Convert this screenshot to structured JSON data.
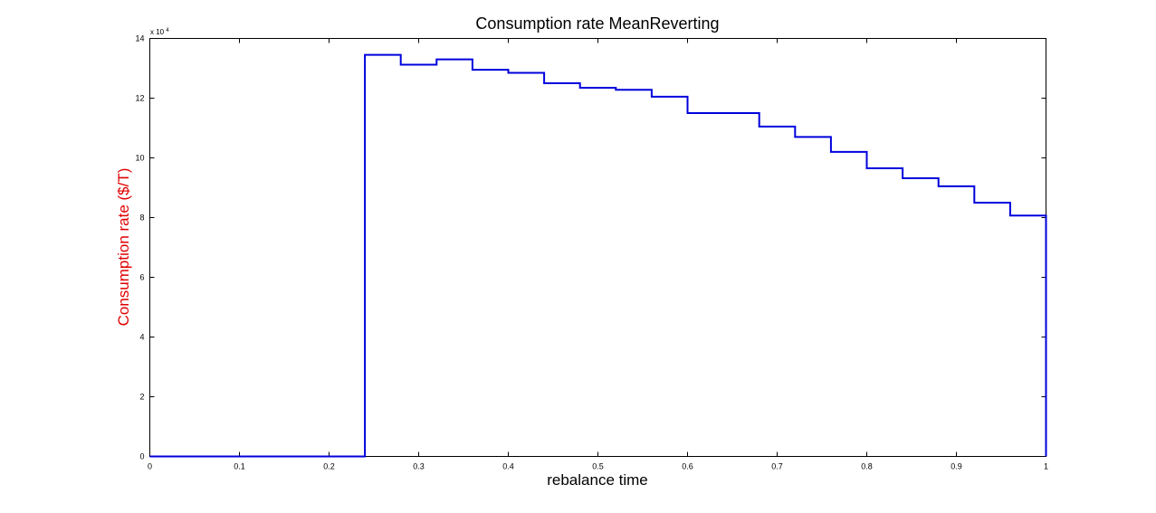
{
  "chart_data": {
    "type": "line",
    "step": true,
    "title": "Consumption rate MeanReverting",
    "xlabel": "rebalance time",
    "ylabel": "Consumption rate ($/T)",
    "xlim": [
      0,
      1
    ],
    "ylim": [
      0,
      140000
    ],
    "grid": false,
    "x_ticks": [
      0,
      0.1,
      0.2,
      0.3,
      0.4,
      0.5,
      0.6,
      0.7,
      0.8,
      0.9,
      1
    ],
    "x_tick_labels": [
      "0",
      "0.1",
      "0.2",
      "0.3",
      "0.4",
      "0.5",
      "0.6",
      "0.7",
      "0.8",
      "0.9",
      "1"
    ],
    "y_ticks": [
      0,
      20000,
      40000,
      60000,
      80000,
      100000,
      120000,
      140000
    ],
    "y_tick_labels": [
      "0",
      "2",
      "4",
      "6",
      "8",
      "10",
      "12",
      "14"
    ],
    "y_multiplier_base": "x 10",
    "y_multiplier_exp": "4",
    "line_color": "#0000dd",
    "ylabel_color": "#e00000",
    "series": [
      {
        "x": [
          0,
          0.04,
          0.08,
          0.12,
          0.16,
          0.2,
          0.24,
          0.28,
          0.32,
          0.36,
          0.4,
          0.44,
          0.48,
          0.52,
          0.56,
          0.6,
          0.64,
          0.68,
          0.72,
          0.76,
          0.8,
          0.84,
          0.88,
          0.92,
          0.96
        ],
        "values": [
          0,
          0,
          0,
          0,
          0,
          0,
          134500,
          131200,
          133000,
          129500,
          128500,
          125000,
          123500,
          122800,
          120500,
          115000,
          115000,
          110500,
          107000,
          102000,
          96500,
          93200,
          90500,
          85000,
          80700
        ]
      }
    ]
  }
}
